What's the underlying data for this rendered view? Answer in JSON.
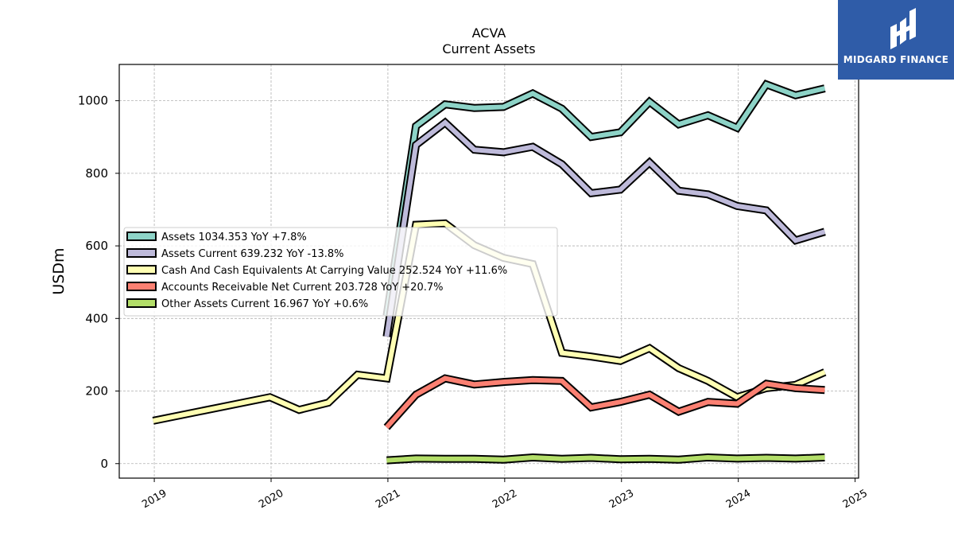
{
  "chart_data": {
    "type": "line",
    "title": "ACVA",
    "subtitle": "Current  Assets",
    "ylabel": "USDm",
    "xlabel": "",
    "ylim": [
      -40,
      1100
    ],
    "xlim": [
      2018.7,
      2025.03
    ],
    "grid": true,
    "legend_position": "center-left",
    "x_ticks": [
      2019,
      2020,
      2021,
      2022,
      2023,
      2024,
      2025
    ],
    "x_tick_labels": [
      "2019",
      "2020",
      "2021",
      "2022",
      "2023",
      "2024",
      "2025"
    ],
    "y_ticks": [
      0,
      200,
      400,
      600,
      800,
      1000
    ],
    "y_tick_labels": [
      "0",
      "200",
      "400",
      "600",
      "800",
      "1000"
    ],
    "series": [
      {
        "name": "Assets",
        "legend": "Assets  1034.353 YoY +7.8%",
        "color": "#8dd3c7",
        "x": [
          2020.99,
          2021.24,
          2021.49,
          2021.74,
          2021.99,
          2022.24,
          2022.49,
          2022.74,
          2022.99,
          2023.24,
          2023.49,
          2023.74,
          2023.99,
          2024.24,
          2024.49,
          2024.74
        ],
        "y": [
          408,
          930,
          990,
          980,
          983,
          1020,
          978,
          900,
          913,
          997,
          935,
          960,
          925,
          1045,
          1015,
          1034
        ]
      },
      {
        "name": "Assets Current",
        "legend": "Assets Current  639.232 YoY -13.8%",
        "color": "#bebada",
        "x": [
          2020.99,
          2021.24,
          2021.49,
          2021.74,
          2021.99,
          2022.24,
          2022.49,
          2022.74,
          2022.99,
          2023.24,
          2023.49,
          2023.74,
          2023.99,
          2024.24,
          2024.49,
          2024.74
        ],
        "y": [
          350,
          878,
          940,
          865,
          858,
          873,
          825,
          745,
          755,
          830,
          752,
          742,
          710,
          698,
          615,
          639
        ]
      },
      {
        "name": "Cash And Cash Equivalents At Carrying Value",
        "legend": "Cash And Cash Equivalents At Carrying Value  252.524 YoY +11.6%",
        "color": "#ffffb3",
        "x": [
          2018.99,
          2019.99,
          2020.24,
          2020.49,
          2020.74,
          2020.99,
          2021.24,
          2021.49,
          2021.74,
          2021.99,
          2022.24,
          2022.49,
          2022.74,
          2022.99,
          2023.24,
          2023.49,
          2023.74,
          2023.99,
          2024.24,
          2024.49,
          2024.74
        ],
        "y": [
          118,
          183,
          148,
          168,
          245,
          235,
          658,
          662,
          602,
          567,
          550,
          305,
          295,
          283,
          318,
          263,
          228,
          183,
          208,
          217,
          252
        ]
      },
      {
        "name": "Accounts Receivable Net Current",
        "legend": "Accounts Receivable Net Current  203.728 YoY +20.7%",
        "color": "#fb8072",
        "x": [
          2020.99,
          2021.24,
          2021.49,
          2021.74,
          2021.99,
          2022.24,
          2022.49,
          2022.74,
          2022.99,
          2023.24,
          2023.49,
          2023.74,
          2023.99,
          2024.24,
          2024.49,
          2024.74
        ],
        "y": [
          100,
          190,
          235,
          218,
          225,
          230,
          228,
          155,
          170,
          190,
          143,
          170,
          165,
          220,
          208,
          203
        ]
      },
      {
        "name": "Other Assets Current",
        "legend": "Other Assets Current  16.967 YoY +0.6%",
        "color": "#b3de69",
        "x": [
          2020.99,
          2021.24,
          2021.49,
          2021.74,
          2021.99,
          2022.24,
          2022.49,
          2022.74,
          2022.99,
          2023.24,
          2023.49,
          2023.74,
          2023.99,
          2024.24,
          2024.49,
          2024.74
        ],
        "y": [
          9,
          14,
          13,
          13,
          11,
          17,
          13,
          16,
          12,
          13,
          11,
          17,
          14,
          16,
          14,
          17
        ]
      }
    ]
  },
  "logo": {
    "text": "MIDGARD FINANCE",
    "background": "#2f5ca8"
  }
}
